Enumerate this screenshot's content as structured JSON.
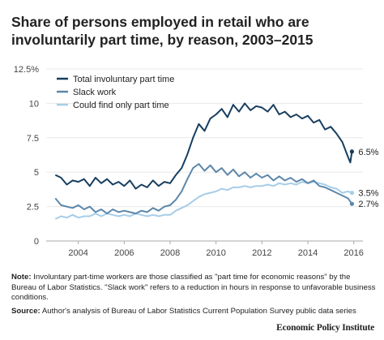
{
  "title": "Share of persons employed in retail who are involuntarily part time, by reason, 2003–2015",
  "note_label": "Note:",
  "note_text": "Involuntary part-time workers are those classified as \"part time for economic reasons\" by the Bureau of Labor Statistics. \"Slack work\" refers to a reduction in hours in response to unfavorable business conditions.",
  "source_label": "Source:",
  "source_text": "Author's analysis of Bureau of Labor Statistics Current Population Survey public data series",
  "logo": "Economic Policy Institute",
  "colors": {
    "total": "#173e5f",
    "slack": "#5d87aa",
    "only_pt": "#a6cde8",
    "axis": "#aaaaaa",
    "grid": "#e9e9e9"
  },
  "chart_data": {
    "type": "line",
    "title": "Share of persons employed in retail who are involuntarily part time, by reason, 2003–2015",
    "xlabel": "",
    "ylabel": "",
    "xlim": [
      2002.6,
      2016.4
    ],
    "ylim": [
      0,
      12.5
    ],
    "y_ticks": [
      0,
      2.5,
      5,
      7.5,
      10,
      12.5
    ],
    "y_tick_labels": [
      "0",
      "2.5",
      "5",
      "7.5",
      "10",
      "12.5%"
    ],
    "x_ticks": [
      2004,
      2006,
      2008,
      2010,
      2012,
      2014,
      2016
    ],
    "x_tick_labels": [
      "2004",
      "2006",
      "2008",
      "2010",
      "2012",
      "2014",
      "2016"
    ],
    "grid": true,
    "legend_position": "top-left",
    "series": [
      {
        "name": "Total involuntary part time",
        "color": "#173e5f",
        "end_label": "6.5%",
        "points": [
          [
            2003.0,
            4.8
          ],
          [
            2003.25,
            4.6
          ],
          [
            2003.5,
            4.1
          ],
          [
            2003.75,
            4.4
          ],
          [
            2004.0,
            4.3
          ],
          [
            2004.25,
            4.5
          ],
          [
            2004.5,
            4.0
          ],
          [
            2004.75,
            4.6
          ],
          [
            2005.0,
            4.2
          ],
          [
            2005.25,
            4.5
          ],
          [
            2005.5,
            4.1
          ],
          [
            2005.75,
            4.3
          ],
          [
            2006.0,
            4.0
          ],
          [
            2006.25,
            4.4
          ],
          [
            2006.5,
            3.8
          ],
          [
            2006.75,
            4.1
          ],
          [
            2007.0,
            3.9
          ],
          [
            2007.25,
            4.4
          ],
          [
            2007.5,
            4.0
          ],
          [
            2007.75,
            4.3
          ],
          [
            2008.0,
            4.2
          ],
          [
            2008.25,
            4.8
          ],
          [
            2008.5,
            5.3
          ],
          [
            2008.75,
            6.3
          ],
          [
            2009.0,
            7.5
          ],
          [
            2009.25,
            8.5
          ],
          [
            2009.5,
            8.0
          ],
          [
            2009.75,
            8.9
          ],
          [
            2010.0,
            9.2
          ],
          [
            2010.25,
            9.6
          ],
          [
            2010.5,
            9.0
          ],
          [
            2010.75,
            9.9
          ],
          [
            2011.0,
            9.4
          ],
          [
            2011.25,
            10.0
          ],
          [
            2011.5,
            9.5
          ],
          [
            2011.75,
            9.8
          ],
          [
            2012.0,
            9.7
          ],
          [
            2012.25,
            9.4
          ],
          [
            2012.5,
            9.9
          ],
          [
            2012.75,
            9.2
          ],
          [
            2013.0,
            9.4
          ],
          [
            2013.25,
            9.0
          ],
          [
            2013.5,
            9.2
          ],
          [
            2013.75,
            8.9
          ],
          [
            2014.0,
            9.1
          ],
          [
            2014.25,
            8.6
          ],
          [
            2014.5,
            8.8
          ],
          [
            2014.75,
            8.1
          ],
          [
            2015.0,
            8.3
          ],
          [
            2015.25,
            7.8
          ],
          [
            2015.5,
            7.2
          ],
          [
            2015.75,
            6.1
          ],
          [
            2015.85,
            5.7
          ],
          [
            2015.92,
            6.5
          ]
        ]
      },
      {
        "name": "Slack work",
        "color": "#5d87aa",
        "end_label": "2.7%",
        "points": [
          [
            2003.0,
            3.1
          ],
          [
            2003.25,
            2.6
          ],
          [
            2003.5,
            2.5
          ],
          [
            2003.75,
            2.4
          ],
          [
            2004.0,
            2.6
          ],
          [
            2004.25,
            2.3
          ],
          [
            2004.5,
            2.5
          ],
          [
            2004.75,
            2.1
          ],
          [
            2005.0,
            2.3
          ],
          [
            2005.25,
            2.0
          ],
          [
            2005.5,
            2.3
          ],
          [
            2005.75,
            2.1
          ],
          [
            2006.0,
            2.2
          ],
          [
            2006.25,
            2.1
          ],
          [
            2006.5,
            2.0
          ],
          [
            2006.75,
            2.2
          ],
          [
            2007.0,
            2.1
          ],
          [
            2007.25,
            2.4
          ],
          [
            2007.5,
            2.2
          ],
          [
            2007.75,
            2.5
          ],
          [
            2008.0,
            2.6
          ],
          [
            2008.25,
            3.0
          ],
          [
            2008.5,
            3.6
          ],
          [
            2008.75,
            4.5
          ],
          [
            2009.0,
            5.3
          ],
          [
            2009.25,
            5.6
          ],
          [
            2009.5,
            5.1
          ],
          [
            2009.75,
            5.5
          ],
          [
            2010.0,
            5.0
          ],
          [
            2010.25,
            5.3
          ],
          [
            2010.5,
            4.8
          ],
          [
            2010.75,
            5.2
          ],
          [
            2011.0,
            4.7
          ],
          [
            2011.25,
            5.0
          ],
          [
            2011.5,
            4.6
          ],
          [
            2011.75,
            4.9
          ],
          [
            2012.0,
            4.6
          ],
          [
            2012.25,
            4.8
          ],
          [
            2012.5,
            4.4
          ],
          [
            2012.75,
            4.7
          ],
          [
            2013.0,
            4.4
          ],
          [
            2013.25,
            4.6
          ],
          [
            2013.5,
            4.3
          ],
          [
            2013.75,
            4.5
          ],
          [
            2014.0,
            4.2
          ],
          [
            2014.25,
            4.4
          ],
          [
            2014.5,
            4.0
          ],
          [
            2014.75,
            3.9
          ],
          [
            2015.0,
            3.7
          ],
          [
            2015.25,
            3.5
          ],
          [
            2015.5,
            3.3
          ],
          [
            2015.75,
            3.1
          ],
          [
            2015.92,
            2.7
          ]
        ]
      },
      {
        "name": "Could find only part time",
        "color": "#a6cde8",
        "end_label": "3.5%",
        "points": [
          [
            2003.0,
            1.6
          ],
          [
            2003.25,
            1.8
          ],
          [
            2003.5,
            1.7
          ],
          [
            2003.75,
            1.9
          ],
          [
            2004.0,
            1.7
          ],
          [
            2004.25,
            1.8
          ],
          [
            2004.5,
            1.8
          ],
          [
            2004.75,
            2.0
          ],
          [
            2005.0,
            1.8
          ],
          [
            2005.25,
            2.0
          ],
          [
            2005.5,
            1.9
          ],
          [
            2005.75,
            1.8
          ],
          [
            2006.0,
            1.9
          ],
          [
            2006.25,
            1.8
          ],
          [
            2006.5,
            2.0
          ],
          [
            2006.75,
            1.9
          ],
          [
            2007.0,
            1.8
          ],
          [
            2007.25,
            1.9
          ],
          [
            2007.5,
            1.8
          ],
          [
            2007.75,
            1.9
          ],
          [
            2008.0,
            1.9
          ],
          [
            2008.25,
            2.2
          ],
          [
            2008.5,
            2.4
          ],
          [
            2008.75,
            2.6
          ],
          [
            2009.0,
            2.9
          ],
          [
            2009.25,
            3.2
          ],
          [
            2009.5,
            3.4
          ],
          [
            2009.75,
            3.5
          ],
          [
            2010.0,
            3.6
          ],
          [
            2010.25,
            3.8
          ],
          [
            2010.5,
            3.7
          ],
          [
            2010.75,
            3.9
          ],
          [
            2011.0,
            3.9
          ],
          [
            2011.25,
            4.0
          ],
          [
            2011.5,
            3.9
          ],
          [
            2011.75,
            4.0
          ],
          [
            2012.0,
            4.0
          ],
          [
            2012.25,
            4.1
          ],
          [
            2012.5,
            4.0
          ],
          [
            2012.75,
            4.2
          ],
          [
            2013.0,
            4.1
          ],
          [
            2013.25,
            4.2
          ],
          [
            2013.5,
            4.1
          ],
          [
            2013.75,
            4.3
          ],
          [
            2014.0,
            4.2
          ],
          [
            2014.25,
            4.3
          ],
          [
            2014.5,
            4.2
          ],
          [
            2014.75,
            4.1
          ],
          [
            2015.0,
            3.9
          ],
          [
            2015.25,
            3.8
          ],
          [
            2015.5,
            3.5
          ],
          [
            2015.75,
            3.6
          ],
          [
            2015.92,
            3.5
          ]
        ]
      }
    ]
  }
}
